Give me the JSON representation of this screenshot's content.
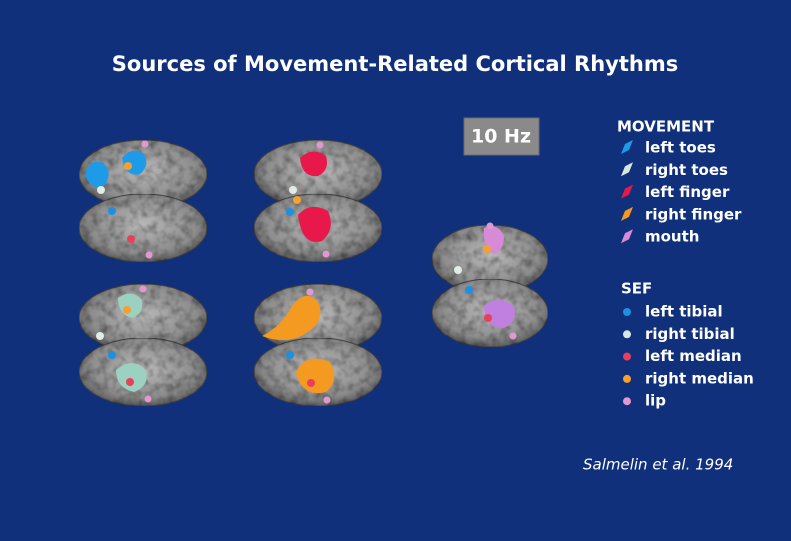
{
  "title": "Sources of Movement-Related Cortical Rhythms",
  "frequency_label": "10 Hz",
  "legend": {
    "movement": {
      "title": "MOVEMENT",
      "items": [
        "left toes",
        "right toes",
        "left finger",
        "right finger",
        "mouth"
      ]
    },
    "sef": {
      "title": "SEF",
      "items": [
        "left tibial",
        "right tibial",
        "left median",
        "right median",
        "lip"
      ]
    }
  },
  "citation": "Salmelin et al. 1994"
}
